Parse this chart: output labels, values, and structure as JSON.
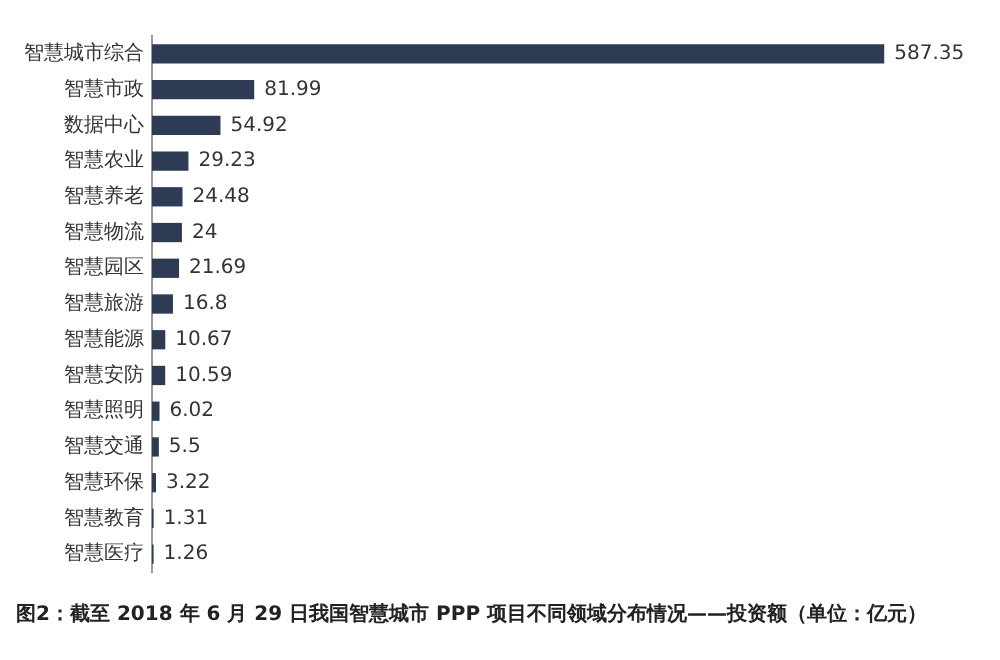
{
  "chart_data": {
    "type": "bar",
    "orientation": "horizontal",
    "title": "图2：截至 2018 年 6 月 29 日我国智慧城市 PPP 项目不同领域分布情况——投资额（单位：亿元）",
    "categories": [
      "智慧城市综合",
      "智慧市政",
      "数据中心",
      "智慧农业",
      "智慧养老",
      "智慧物流",
      "智慧园区",
      "智慧旅游",
      "智慧能源",
      "智慧安防",
      "智慧照明",
      "智慧交通",
      "智慧环保",
      "智慧教育",
      "智慧医疗"
    ],
    "values": [
      587.35,
      81.99,
      54.92,
      29.23,
      24.48,
      24,
      21.69,
      16.8,
      10.67,
      10.59,
      6.02,
      5.5,
      3.22,
      1.31,
      1.26
    ],
    "color": "#2e3b55",
    "data_labels": true
  }
}
